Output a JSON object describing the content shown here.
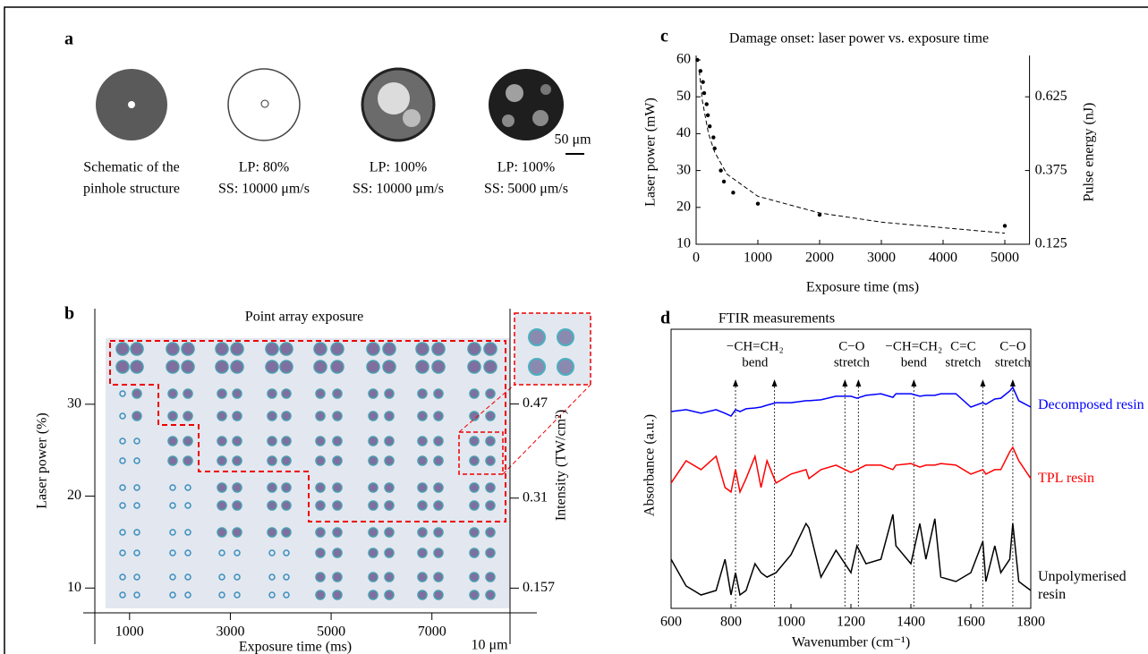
{
  "panel_a": {
    "label": "a",
    "captions": [
      [
        "Schematic of the",
        "pinhole structure"
      ],
      [
        "LP: 80%",
        "SS: 10000 μm/s"
      ],
      [
        "LP: 100%",
        "SS: 10000 μm/s"
      ],
      [
        "LP: 100%",
        "SS: 5000 μm/s"
      ]
    ],
    "scale_bar": "50 μm"
  },
  "chart_data": [
    {
      "label": "b",
      "type": "image",
      "title": "Point array exposure",
      "x_label": "Exposure time (ms)",
      "y_label": "Laser power (%)",
      "y2_label": "Intensity (TW/cm²)",
      "xlim": [
        80,
        8550
      ],
      "xticks": [
        1000,
        3000,
        5000,
        7000
      ],
      "ylim": [
        7.3,
        40.4
      ],
      "yticks": [
        10,
        20,
        30
      ],
      "y2lim": [
        0.115,
        0.632
      ],
      "y2ticks": [
        0.157,
        0.31,
        0.47
      ],
      "scale_bar": "10 μm"
    },
    {
      "label": "c",
      "type": "scatter",
      "title": "Damage onset: laser power vs. exposure time",
      "x_label": "Exposure time (ms)",
      "y_label": "Laser power (mW)",
      "y2_label": "Pulse energy (nJ)",
      "x": [
        20,
        70,
        110,
        130,
        170,
        190,
        220,
        280,
        300,
        400,
        450,
        600,
        1000,
        2000,
        5000
      ],
      "values": [
        60,
        57,
        54,
        51,
        48,
        45,
        42,
        39,
        36,
        30,
        27,
        24,
        21,
        18,
        15
      ],
      "color": "#000000",
      "fit": {
        "x": [
          50,
          100,
          200,
          300,
          500,
          1000,
          2000,
          3000,
          4000,
          5000
        ],
        "values": [
          57,
          49,
          40,
          35,
          29,
          23,
          18.5,
          16,
          14.5,
          13
        ],
        "color": "#000000",
        "style": "dashed"
      },
      "xlim": [
        0,
        5400
      ],
      "xticks": [
        0,
        1000,
        2000,
        3000,
        4000,
        5000
      ],
      "ylim": [
        10,
        60
      ],
      "yticks": [
        10,
        20,
        30,
        40,
        50,
        60
      ],
      "y2lim": [
        0.125,
        0.75
      ],
      "y2ticks": [
        0.125,
        0.375,
        0.625
      ]
    },
    {
      "label": "d",
      "type": "line",
      "title": "FTIR measurements",
      "x_label": "Wavenumber (cm⁻¹)",
      "y_label": "Absorbance (a.u.)",
      "x": [
        600,
        650,
        700,
        750,
        780,
        800,
        815,
        830,
        850,
        880,
        900,
        920,
        950,
        1000,
        1050,
        1060,
        1100,
        1150,
        1200,
        1220,
        1250,
        1300,
        1340,
        1350,
        1400,
        1430,
        1450,
        1480,
        1500,
        1550,
        1600,
        1640,
        1650,
        1680,
        1700,
        1730,
        1740,
        1760,
        1800
      ],
      "series": [
        {
          "name": "Decomposed resin",
          "color": "#0000ff",
          "values": [
            7.05,
            7.12,
            6.99,
            7.12,
            6.99,
            6.89,
            7.12,
            7.05,
            7.15,
            7.18,
            7.21,
            7.28,
            7.37,
            7.37,
            7.44,
            7.44,
            7.47,
            7.6,
            7.6,
            7.53,
            7.63,
            7.69,
            7.56,
            7.69,
            7.69,
            7.6,
            7.63,
            7.63,
            7.69,
            7.69,
            7.21,
            7.37,
            7.31,
            7.5,
            7.53,
            7.79,
            7.92,
            7.44,
            7.21
          ]
        },
        {
          "name": "TPL resin",
          "color": "#ff0000",
          "values": [
            4.49,
            5.29,
            4.97,
            5.45,
            4.33,
            4.17,
            4.97,
            4.17,
            4.65,
            5.45,
            4.33,
            5.29,
            4.49,
            4.81,
            4.97,
            4.65,
            4.97,
            5.13,
            4.87,
            4.97,
            5.13,
            5.13,
            4.97,
            5.13,
            5.19,
            5.06,
            5.13,
            5.13,
            5.19,
            5.13,
            4.81,
            4.97,
            4.81,
            4.97,
            4.97,
            5.61,
            5.77,
            5.29,
            4.65
          ]
        },
        {
          "name": "Unpolymerised resin",
          "color": "#000000",
          "values": [
            1.76,
            0.8,
            0.48,
            0.64,
            1.76,
            0.48,
            1.28,
            0.48,
            0.64,
            1.6,
            1.28,
            1.12,
            1.28,
            1.92,
            3.04,
            2.88,
            1.12,
            2.08,
            1.28,
            2.24,
            1.6,
            1.76,
            3.37,
            2.24,
            1.6,
            3.04,
            1.76,
            3.21,
            1.12,
            0.96,
            1.28,
            2.4,
            0.96,
            2.24,
            1.28,
            1.76,
            3.04,
            0.96,
            0.64
          ]
        }
      ],
      "annotations": [
        {
          "lines": [
            815,
            945
          ],
          "label": [
            "−CH=CH₂",
            "bend"
          ]
        },
        {
          "lines": [
            1180,
            1225
          ],
          "label": [
            "C−O",
            "stretch"
          ]
        },
        {
          "lines": [
            1410
          ],
          "label": [
            "−CH=CH₂",
            "bend"
          ]
        },
        {
          "lines": [
            1640
          ],
          "label": [
            "C=C",
            "stretch"
          ]
        },
        {
          "lines": [
            1740
          ],
          "label": [
            "C−O",
            "stretch"
          ]
        }
      ],
      "xlim": [
        600,
        1800
      ],
      "xticks": [
        600,
        800,
        1000,
        1200,
        1400,
        1600,
        1800
      ],
      "ylim": [
        0,
        10
      ]
    }
  ]
}
